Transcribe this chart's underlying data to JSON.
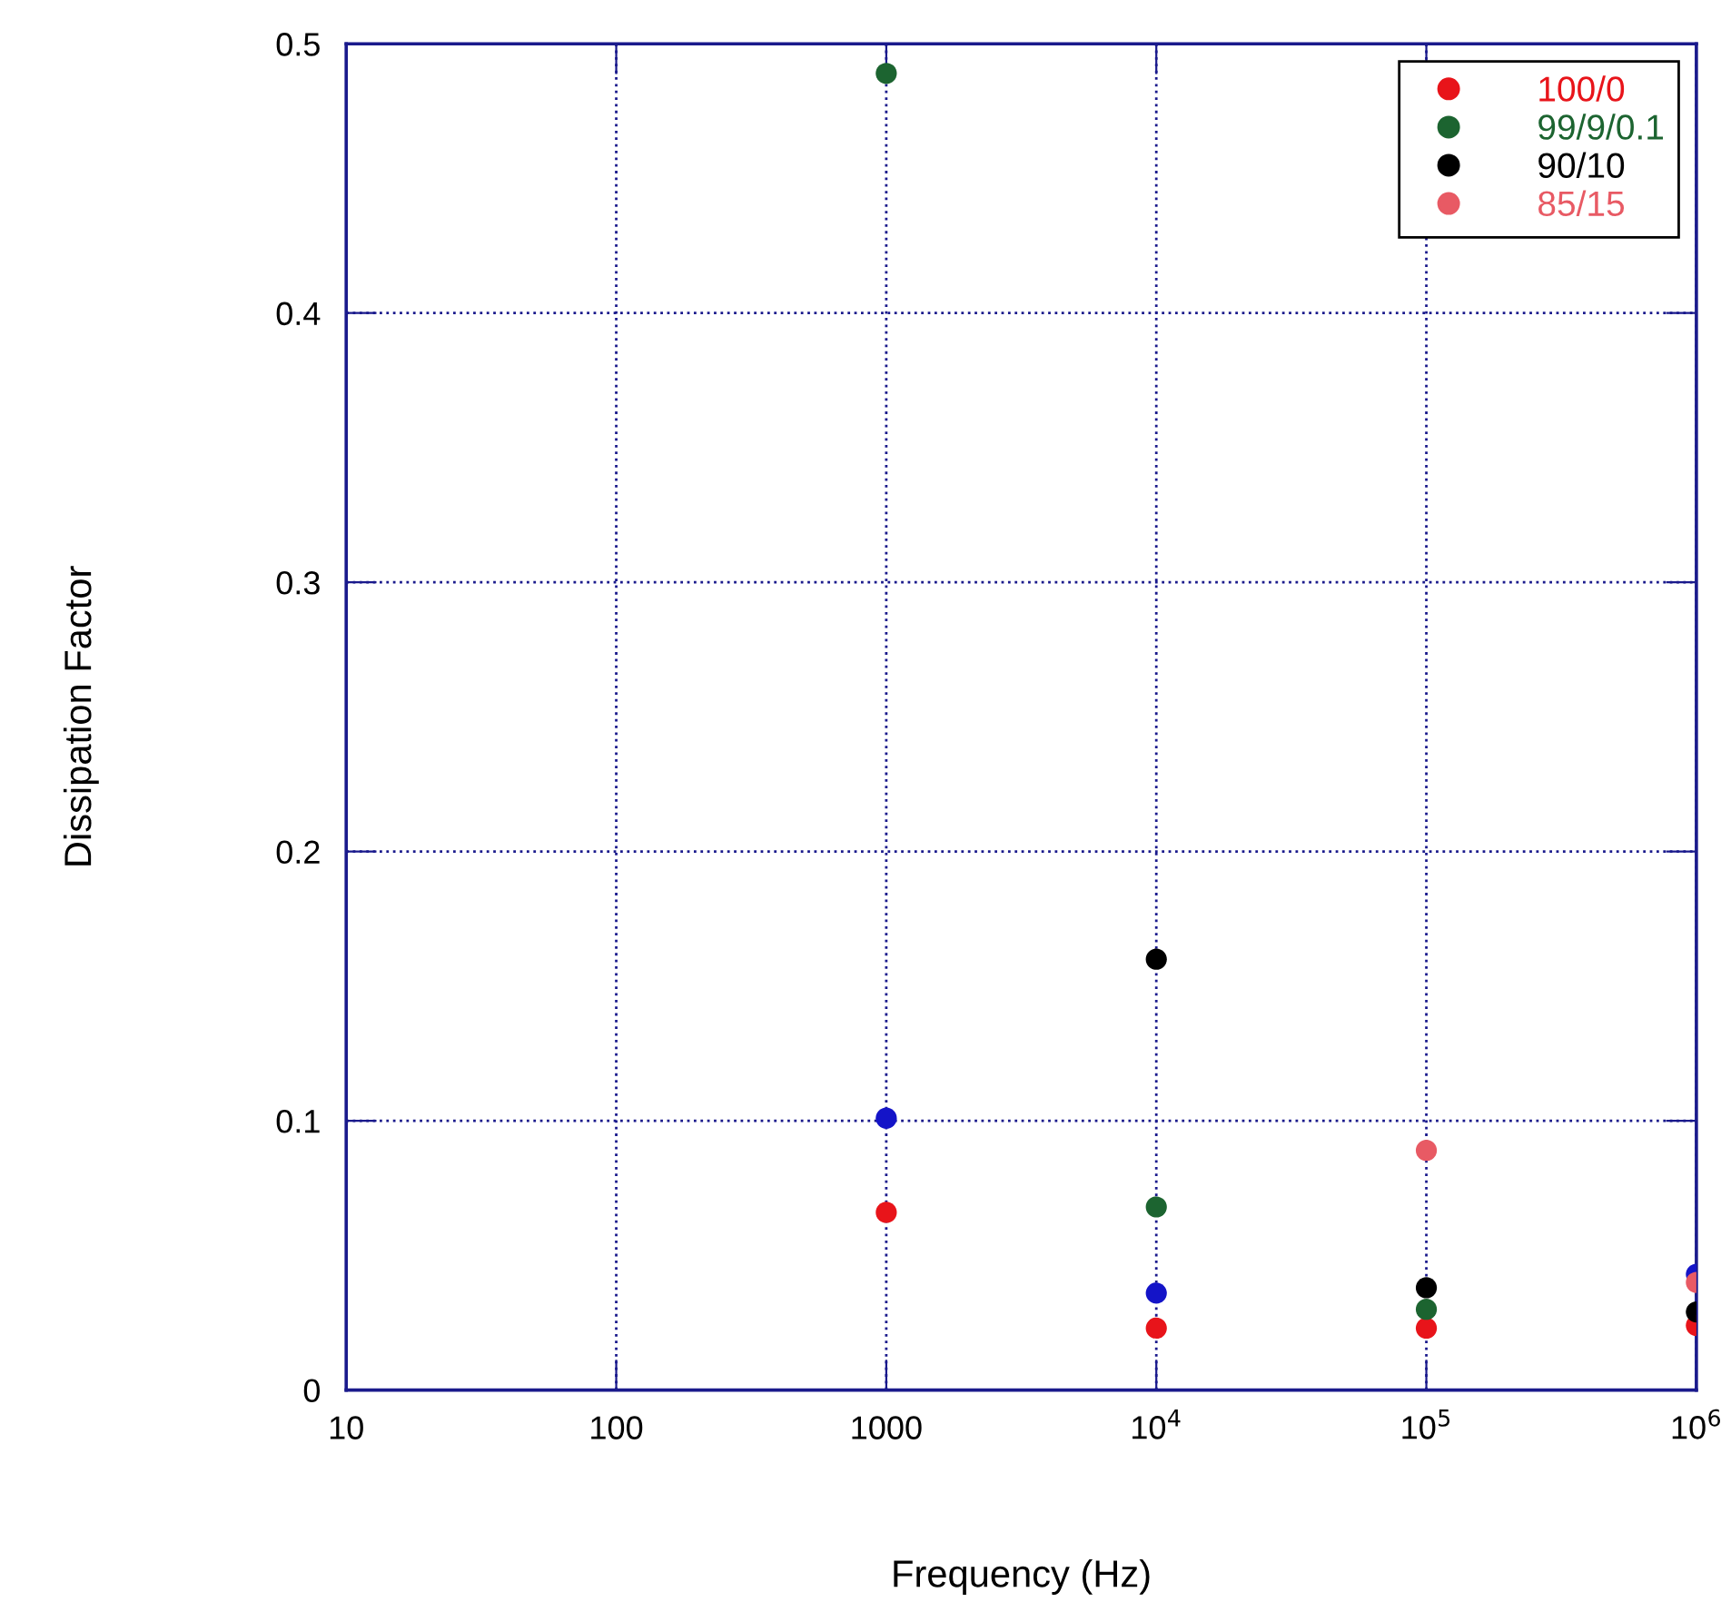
{
  "chart_data": {
    "type": "scatter",
    "xlabel": "Frequency (Hz)",
    "ylabel": "Dissipation Factor",
    "log": "x",
    "xlim": [
      10,
      1000000
    ],
    "ylim": [
      0,
      0.5
    ],
    "xticks": [
      10,
      100,
      1000,
      {
        "value": 10000,
        "label": "10$^{4}$"
      },
      {
        "value": 100000,
        "label": "10$^{5}$"
      },
      {
        "value": 1000000,
        "label": "10$^{6}$"
      }
    ],
    "yticks": [
      0,
      0.1,
      0.2,
      0.3,
      0.4,
      0.5
    ],
    "grid": true,
    "legend": "top right",
    "marker": "circle",
    "series": [
      {
        "name": "100/0",
        "color": "#e8141a",
        "x": [
          1000,
          10000,
          100000,
          1000000
        ],
        "values": [
          0.066,
          0.023,
          0.023,
          0.024
        ]
      },
      {
        "color": "#1414c8",
        "x": [
          1000,
          10000,
          1000000
        ],
        "values": [
          0.101,
          0.036,
          0.043
        ]
      },
      {
        "name": "99/9/0.1",
        "color": "#1c6430",
        "x": [
          1000,
          10000,
          100000
        ],
        "values": [
          0.489,
          0.068,
          0.03
        ]
      },
      {
        "name": "90/10",
        "color": "#000000",
        "x": [
          10000,
          100000,
          1000000
        ],
        "values": [
          0.16,
          0.038,
          0.029
        ]
      },
      {
        "name": "85/15",
        "color": "#e85a64",
        "x": [
          100000,
          1000000
        ],
        "values": [
          0.089,
          0.04
        ]
      }
    ]
  }
}
